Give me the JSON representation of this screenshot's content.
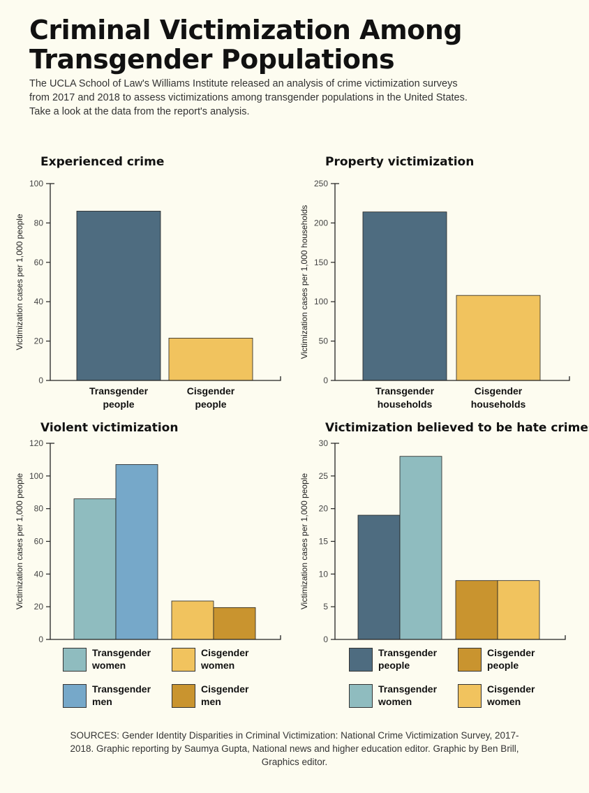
{
  "title": "Criminal Victimization Among Transgender Populations",
  "intro": "The UCLA School of Law's Williams Institute released an analysis of crime victimization surveys from 2017 and 2018 to assess victimizations among transgender populations in the United States. Take a look at the data from the report's analysis.",
  "sources": "SOURCES: Gender Identity Disparities in Criminal Victimization: National Crime Victimization Survey, 2017-2018. Graphic reporting by Saumya Gupta, National news and higher education editor. Graphic by Ben Brill, Graphics editor.",
  "colors": {
    "dark_blue": "#4e6c80",
    "yellow": "#f1c35e",
    "teal": "#8fbcbf",
    "light_blue": "#76a8c9",
    "gold": "#c9942f"
  },
  "chart_data": [
    {
      "id": "experienced-crime",
      "type": "bar",
      "title": "Experienced crime",
      "ylabel": "Victimization cases per 1,000 people",
      "ylim": [
        0,
        100
      ],
      "yticks": [
        0,
        20,
        40,
        60,
        80,
        100
      ],
      "grid": false,
      "categories": [
        "Transgender\npeople",
        "Cisgender\npeople"
      ],
      "groups": [
        {
          "bars": [
            {
              "value": 86,
              "color": "#4e6c80"
            }
          ]
        },
        {
          "bars": [
            {
              "value": 21.5,
              "color": "#f1c35e"
            }
          ]
        }
      ]
    },
    {
      "id": "property-victimization",
      "type": "bar",
      "title": "Property victimization",
      "ylabel": "Victimization cases per 1,000 households",
      "ylim": [
        0,
        250
      ],
      "yticks": [
        0,
        50,
        100,
        150,
        200,
        250
      ],
      "grid": false,
      "categories": [
        "Transgender\nhouseholds",
        "Cisgender\nhouseholds"
      ],
      "groups": [
        {
          "bars": [
            {
              "value": 214,
              "color": "#4e6c80"
            }
          ]
        },
        {
          "bars": [
            {
              "value": 108,
              "color": "#f1c35e"
            }
          ]
        }
      ]
    },
    {
      "id": "violent-victimization",
      "type": "bar",
      "title": "Violent victimization",
      "ylabel": "Victimization cases per 1,000 people",
      "ylim": [
        0,
        120
      ],
      "yticks": [
        0,
        20,
        40,
        60,
        80,
        100,
        120
      ],
      "grid": false,
      "categories": [
        "",
        ""
      ],
      "groups": [
        {
          "bars": [
            {
              "value": 86,
              "color": "#8fbcbf"
            },
            {
              "value": 107,
              "color": "#76a8c9"
            }
          ]
        },
        {
          "bars": [
            {
              "value": 23.5,
              "color": "#f1c35e"
            },
            {
              "value": 19.5,
              "color": "#c9942f"
            }
          ]
        }
      ],
      "legend": [
        {
          "label": "Transgender\nwomen",
          "color": "#8fbcbf"
        },
        {
          "label": "Cisgender\nwomen",
          "color": "#f1c35e"
        },
        {
          "label": "Transgender\nmen",
          "color": "#76a8c9"
        },
        {
          "label": "Cisgender\nmen",
          "color": "#c9942f"
        }
      ]
    },
    {
      "id": "hate-crimes",
      "type": "bar",
      "title": "Victimization believed to be hate crimes",
      "ylabel": "Victimization cases per 1,000 people",
      "ylim": [
        0,
        30
      ],
      "yticks": [
        0,
        5,
        10,
        15,
        20,
        25,
        30
      ],
      "grid": false,
      "categories": [
        "",
        ""
      ],
      "groups": [
        {
          "bars": [
            {
              "value": 19,
              "color": "#4e6c80"
            },
            {
              "value": 28,
              "color": "#8fbcbf"
            }
          ]
        },
        {
          "bars": [
            {
              "value": 9,
              "color": "#c9942f"
            },
            {
              "value": 9,
              "color": "#f1c35e"
            }
          ]
        }
      ],
      "legend": [
        {
          "label": "Transgender\npeople",
          "color": "#4e6c80"
        },
        {
          "label": "Cisgender\npeople",
          "color": "#c9942f"
        },
        {
          "label": "Transgender\nwomen",
          "color": "#8fbcbf"
        },
        {
          "label": "Cisgender\nwomen",
          "color": "#f1c35e"
        }
      ]
    }
  ]
}
